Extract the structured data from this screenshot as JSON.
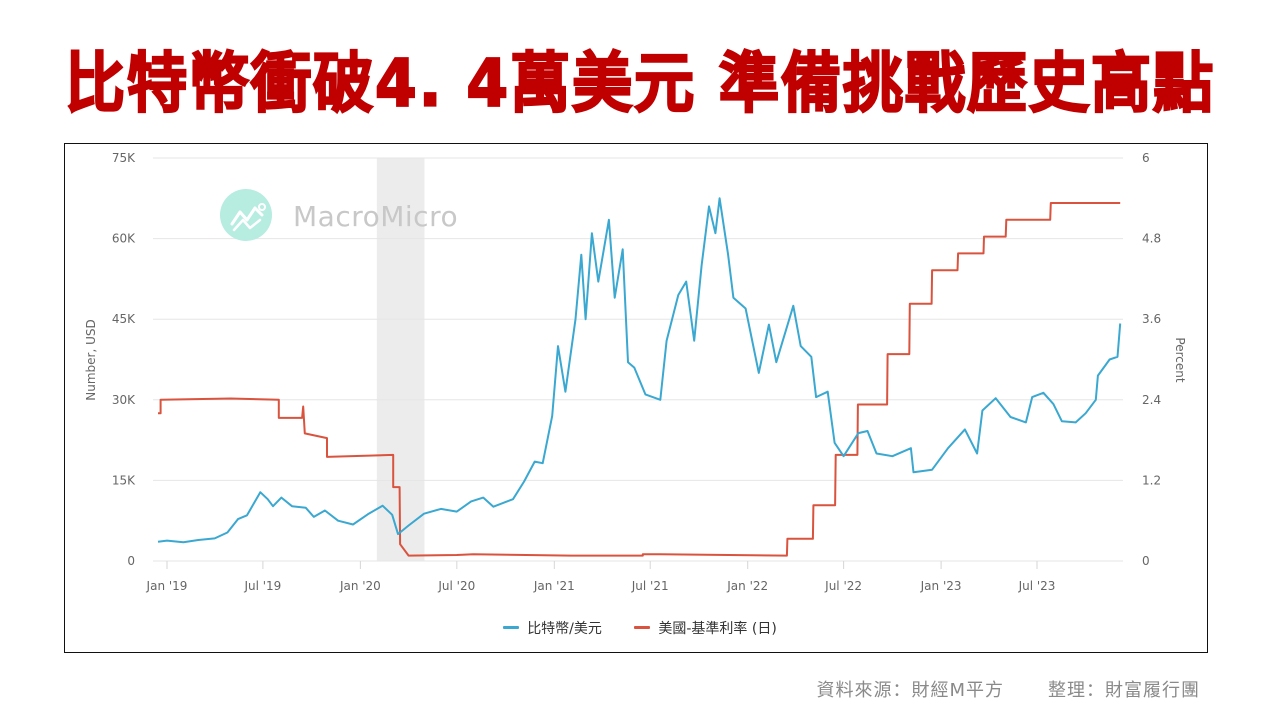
{
  "headline": "比特幣衝破4. 4萬美元  準備挑戰歷史高點",
  "footer": {
    "source": "資料來源：財經M平方",
    "compiled_by": "整理：財富履行團"
  },
  "watermark": {
    "text": "MacroMicro",
    "icon": "chart-logo-icon",
    "color": "#b7ece1"
  },
  "colors": {
    "btc": "#3aa8d0",
    "rate": "#d9533e",
    "recession_band": "#ececec",
    "grid": "#e6e6e6"
  },
  "chart_data": {
    "type": "line",
    "title": "比特幣衝破4. 4萬美元  準備挑戰歷史高點",
    "xlabel": "",
    "ylabel": "Number, USD",
    "ylabel_right": "Percent",
    "ylim": [
      0,
      75000
    ],
    "ylim_right": [
      0,
      6
    ],
    "yticks": [
      "0",
      "15K",
      "30K",
      "45K",
      "60K",
      "75K"
    ],
    "yticks_right": [
      "0",
      "1.2",
      "2.4",
      "3.6",
      "4.8",
      "6"
    ],
    "xticks": [
      "Jan '19",
      "Jul '19",
      "Jan '20",
      "Jul '20",
      "Jan '21",
      "Jul '21",
      "Jan '22",
      "Jul '22",
      "Jan '23",
      "Jul '23"
    ],
    "grid": true,
    "legend_position": "bottom",
    "shaded_region": {
      "label": "recession",
      "start": "2020-02",
      "end": "2020-05"
    },
    "series": [
      {
        "name": "比特幣/美元",
        "axis": "left",
        "color": "#3aa8d0",
        "points": [
          [
            "2018-12-15",
            3600
          ],
          [
            "2019-01-01",
            3800
          ],
          [
            "2019-02-01",
            3500
          ],
          [
            "2019-03-01",
            3900
          ],
          [
            "2019-04-01",
            4200
          ],
          [
            "2019-04-25",
            5300
          ],
          [
            "2019-05-15",
            7800
          ],
          [
            "2019-06-01",
            8500
          ],
          [
            "2019-06-26",
            12800
          ],
          [
            "2019-07-10",
            11500
          ],
          [
            "2019-07-20",
            10200
          ],
          [
            "2019-08-05",
            11800
          ],
          [
            "2019-08-25",
            10200
          ],
          [
            "2019-09-20",
            9900
          ],
          [
            "2019-10-05",
            8200
          ],
          [
            "2019-10-26",
            9400
          ],
          [
            "2019-11-20",
            7500
          ],
          [
            "2019-12-18",
            6800
          ],
          [
            "2020-01-15",
            8700
          ],
          [
            "2020-02-12",
            10300
          ],
          [
            "2020-03-01",
            8600
          ],
          [
            "2020-03-12",
            5000
          ],
          [
            "2020-04-01",
            6600
          ],
          [
            "2020-04-30",
            8800
          ],
          [
            "2020-06-01",
            9700
          ],
          [
            "2020-07-01",
            9200
          ],
          [
            "2020-07-28",
            11100
          ],
          [
            "2020-08-20",
            11800
          ],
          [
            "2020-09-08",
            10100
          ],
          [
            "2020-10-15",
            11500
          ],
          [
            "2020-11-05",
            14800
          ],
          [
            "2020-11-25",
            18500
          ],
          [
            "2020-12-10",
            18200
          ],
          [
            "2020-12-28",
            27000
          ],
          [
            "2021-01-08",
            40000
          ],
          [
            "2021-01-22",
            31500
          ],
          [
            "2021-02-10",
            45000
          ],
          [
            "2021-02-21",
            57000
          ],
          [
            "2021-03-01",
            45000
          ],
          [
            "2021-03-13",
            61000
          ],
          [
            "2021-03-25",
            52000
          ],
          [
            "2021-04-14",
            63500
          ],
          [
            "2021-04-25",
            49000
          ],
          [
            "2021-05-10",
            58000
          ],
          [
            "2021-05-20",
            37000
          ],
          [
            "2021-06-01",
            36000
          ],
          [
            "2021-06-22",
            31000
          ],
          [
            "2021-07-20",
            30000
          ],
          [
            "2021-08-01",
            41000
          ],
          [
            "2021-08-23",
            49500
          ],
          [
            "2021-09-07",
            52000
          ],
          [
            "2021-09-22",
            41000
          ],
          [
            "2021-10-06",
            55000
          ],
          [
            "2021-10-20",
            66000
          ],
          [
            "2021-11-01",
            61000
          ],
          [
            "2021-11-09",
            67500
          ],
          [
            "2021-11-25",
            57000
          ],
          [
            "2021-12-05",
            49000
          ],
          [
            "2021-12-28",
            47000
          ],
          [
            "2022-01-22",
            35000
          ],
          [
            "2022-02-10",
            44000
          ],
          [
            "2022-02-24",
            37000
          ],
          [
            "2022-03-28",
            47500
          ],
          [
            "2022-04-11",
            40000
          ],
          [
            "2022-05-01",
            38000
          ],
          [
            "2022-05-10",
            30500
          ],
          [
            "2022-06-01",
            31500
          ],
          [
            "2022-06-14",
            22000
          ],
          [
            "2022-07-01",
            19500
          ],
          [
            "2022-07-29",
            23800
          ],
          [
            "2022-08-15",
            24200
          ],
          [
            "2022-09-01",
            20000
          ],
          [
            "2022-10-01",
            19500
          ],
          [
            "2022-11-05",
            21000
          ],
          [
            "2022-11-10",
            16500
          ],
          [
            "2022-12-15",
            17000
          ],
          [
            "2023-01-14",
            21000
          ],
          [
            "2023-02-15",
            24500
          ],
          [
            "2023-03-10",
            20000
          ],
          [
            "2023-03-20",
            28000
          ],
          [
            "2023-04-14",
            30300
          ],
          [
            "2023-05-12",
            26800
          ],
          [
            "2023-06-10",
            25800
          ],
          [
            "2023-06-22",
            30500
          ],
          [
            "2023-07-13",
            31300
          ],
          [
            "2023-08-01",
            29200
          ],
          [
            "2023-08-17",
            26000
          ],
          [
            "2023-09-12",
            25800
          ],
          [
            "2023-10-01",
            27500
          ],
          [
            "2023-10-20",
            30000
          ],
          [
            "2023-10-24",
            34500
          ],
          [
            "2023-11-15",
            37500
          ],
          [
            "2023-11-30",
            38000
          ],
          [
            "2023-12-05",
            44200
          ]
        ]
      },
      {
        "name": "美國-基準利率 (日)",
        "axis": "right",
        "color": "#d9533e",
        "points": [
          [
            "2018-12-15",
            2.2
          ],
          [
            "2018-12-20",
            2.2
          ],
          [
            "2018-12-20",
            2.4
          ],
          [
            "2019-05-01",
            2.42
          ],
          [
            "2019-07-31",
            2.4
          ],
          [
            "2019-07-31",
            2.13
          ],
          [
            "2019-09-13",
            2.13
          ],
          [
            "2019-09-15",
            2.3
          ],
          [
            "2019-09-18",
            1.9
          ],
          [
            "2019-10-30",
            1.83
          ],
          [
            "2019-10-30",
            1.55
          ],
          [
            "2020-03-03",
            1.58
          ],
          [
            "2020-03-03",
            1.1
          ],
          [
            "2020-03-15",
            1.1
          ],
          [
            "2020-03-16",
            0.25
          ],
          [
            "2020-04-01",
            0.08
          ],
          [
            "2020-07-01",
            0.09
          ],
          [
            "2020-08-01",
            0.1
          ],
          [
            "2021-02-01",
            0.08
          ],
          [
            "2021-06-17",
            0.08
          ],
          [
            "2021-06-17",
            0.1
          ],
          [
            "2021-07-20",
            0.1
          ],
          [
            "2022-03-16",
            0.08
          ],
          [
            "2022-03-17",
            0.33
          ],
          [
            "2022-05-04",
            0.33
          ],
          [
            "2022-05-05",
            0.83
          ],
          [
            "2022-06-15",
            0.83
          ],
          [
            "2022-06-16",
            1.58
          ],
          [
            "2022-07-27",
            1.58
          ],
          [
            "2022-07-28",
            2.33
          ],
          [
            "2022-09-21",
            2.33
          ],
          [
            "2022-09-22",
            3.08
          ],
          [
            "2022-11-02",
            3.08
          ],
          [
            "2022-11-03",
            3.83
          ],
          [
            "2022-12-14",
            3.83
          ],
          [
            "2022-12-15",
            4.33
          ],
          [
            "2023-02-01",
            4.33
          ],
          [
            "2023-02-02",
            4.58
          ],
          [
            "2023-03-22",
            4.58
          ],
          [
            "2023-03-23",
            4.83
          ],
          [
            "2023-05-03",
            4.83
          ],
          [
            "2023-05-04",
            5.08
          ],
          [
            "2023-07-26",
            5.08
          ],
          [
            "2023-07-27",
            5.33
          ],
          [
            "2023-12-05",
            5.33
          ]
        ]
      }
    ]
  }
}
